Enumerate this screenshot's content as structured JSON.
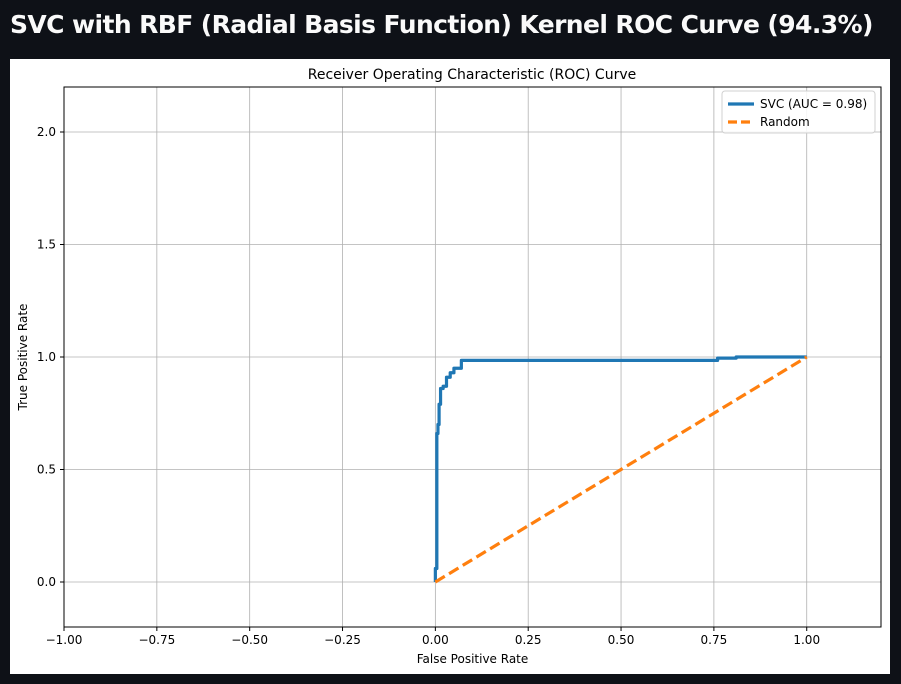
{
  "page": {
    "title": "SVC with RBF (Radial Basis Function) Kernel ROC Curve (94.3%)"
  },
  "colors": {
    "background": "#0e1117",
    "panel": "#ffffff",
    "svc": "#1f77b4",
    "random": "#ff7f0e",
    "grid": "#b0b0b0"
  },
  "chart_data": {
    "type": "line",
    "title": "Receiver Operating Characteristic (ROC) Curve",
    "xlabel": "False Positive Rate",
    "ylabel": "True Positive Rate",
    "xlim": [
      -1.0,
      1.2
    ],
    "ylim": [
      -0.2,
      2.2
    ],
    "xticks": [
      -1.0,
      -0.75,
      -0.5,
      -0.25,
      0.0,
      0.25,
      0.5,
      0.75,
      1.0
    ],
    "xtick_labels": [
      "−1.00",
      "−0.75",
      "−0.50",
      "−0.25",
      "0.00",
      "0.25",
      "0.50",
      "0.75",
      "1.00"
    ],
    "yticks": [
      0.0,
      0.5,
      1.0,
      1.5,
      2.0
    ],
    "ytick_labels": [
      "0.0",
      "0.5",
      "1.0",
      "1.5",
      "2.0"
    ],
    "grid": true,
    "legend_position": "top-right",
    "series": [
      {
        "name": "SVC (AUC = 0.98)",
        "style": "solid",
        "color": "#1f77b4",
        "x": [
          0.0,
          0.0,
          0.004,
          0.004,
          0.007,
          0.007,
          0.01,
          0.01,
          0.014,
          0.014,
          0.021,
          0.021,
          0.03,
          0.03,
          0.04,
          0.04,
          0.05,
          0.05,
          0.07,
          0.07,
          0.3,
          0.5,
          0.76,
          0.76,
          0.81,
          0.81,
          1.0
        ],
        "y": [
          0.0,
          0.06,
          0.06,
          0.66,
          0.66,
          0.7,
          0.7,
          0.79,
          0.79,
          0.86,
          0.86,
          0.87,
          0.87,
          0.91,
          0.91,
          0.93,
          0.93,
          0.95,
          0.95,
          0.985,
          0.985,
          0.985,
          0.985,
          0.995,
          0.995,
          1.0,
          1.0
        ]
      },
      {
        "name": "Random",
        "style": "dashed",
        "color": "#ff7f0e",
        "x": [
          0.0,
          1.0
        ],
        "y": [
          0.0,
          1.0
        ]
      }
    ]
  }
}
